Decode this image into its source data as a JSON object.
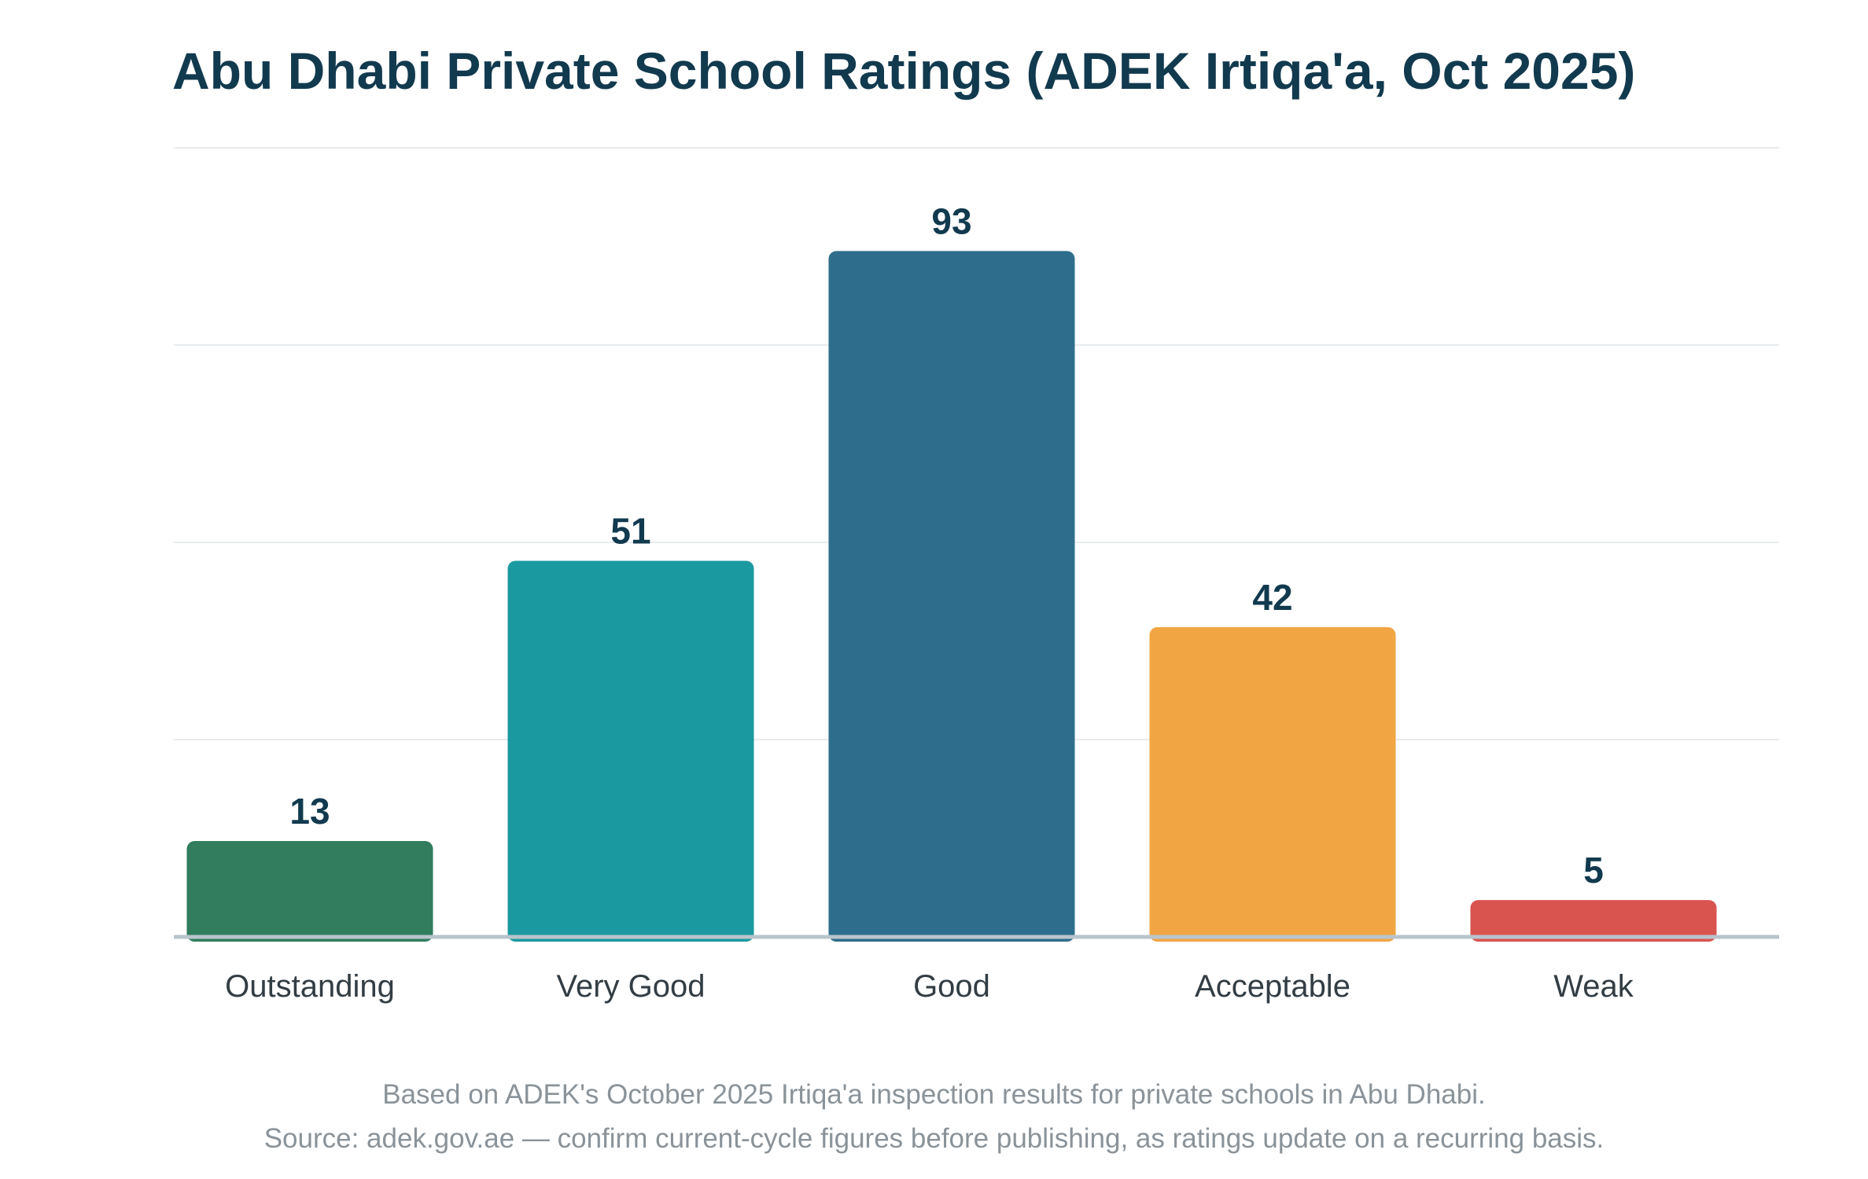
{
  "chart_data": {
    "type": "bar",
    "title": "Abu Dhabi Private School Ratings (ADEK Irtiqa'a, Oct 2025)",
    "categories": [
      "Outstanding",
      "Very Good",
      "Good",
      "Acceptable",
      "Weak"
    ],
    "values": [
      13,
      51,
      93,
      42,
      5
    ],
    "data_labels": [
      "13",
      "51",
      "93",
      "42",
      "5"
    ],
    "bar_colors": [
      "#317d5e",
      "#1b99a0",
      "#2e6e8c",
      "#f1a643",
      "#d9534f"
    ],
    "xlabel": "",
    "ylabel": "",
    "ylim": [
      0,
      107
    ],
    "grid": true,
    "legend": "none"
  },
  "footnotes": {
    "line1": "Based on ADEK's October 2025 Irtiqa'a inspection results for private schools in Abu Dhabi.",
    "line2": "Source: adek.gov.ae — confirm current-cycle figures before publishing, as ratings update on a recurring basis."
  },
  "colors": {
    "title": "#123a4f",
    "value_label": "#123a4f",
    "category_label": "#333d44",
    "gridline": "#e8ecee",
    "baseline": "#b9c4cc",
    "footnote": "#8a9399"
  }
}
